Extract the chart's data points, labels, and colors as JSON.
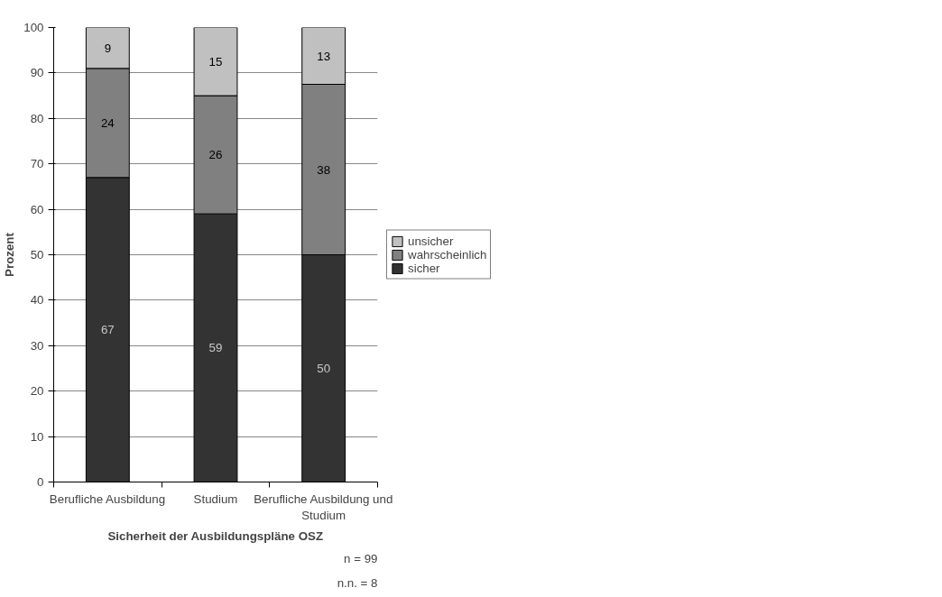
{
  "chart_data": {
    "type": "bar",
    "stacked": true,
    "xlabel": "Sicherheit der Ausbildungspläne OSZ",
    "ylabel": "Prozent",
    "categories": [
      "Berufliche Ausbildung",
      "Studium",
      "Berufliche Ausbildung und Studium"
    ],
    "series": [
      {
        "name": "sicher",
        "color": "#333333",
        "values": [
          67,
          59,
          50
        ],
        "value_labels": [
          "67",
          "59",
          "50"
        ]
      },
      {
        "name": "wahrscheinlich",
        "color": "#808080",
        "values": [
          24,
          26,
          37.5
        ],
        "value_labels": [
          "24",
          "26",
          "38"
        ]
      },
      {
        "name": "unsicher",
        "color": "#c0c0c0",
        "values": [
          9,
          15,
          12.5
        ],
        "value_labels": [
          "9",
          "15",
          "13"
        ]
      }
    ],
    "ylim": [
      0,
      100
    ],
    "yticks": [
      0,
      10,
      20,
      30,
      40,
      50,
      60,
      70,
      80,
      90,
      100
    ],
    "grid": "y",
    "legend": "right",
    "annotations": [
      "n = 99",
      "n.n. = 8"
    ]
  }
}
